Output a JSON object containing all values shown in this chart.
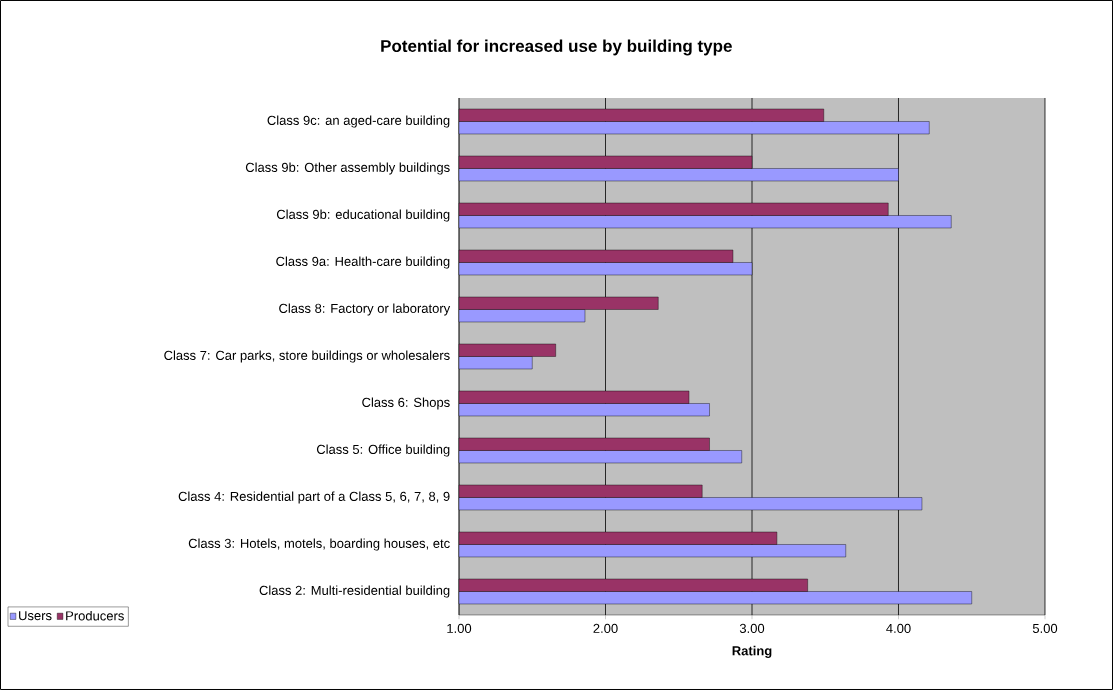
{
  "chart_data": {
    "type": "bar",
    "orientation": "horizontal",
    "title": "Potential for increased use by building type",
    "xlabel": "Rating",
    "categories": [
      "Class 9c: an aged-care building",
      "Class 9b: Other assembly buildings",
      "Class 9b: educational building",
      "Class 9a: Health-care building",
      "Class 8: Factory or laboratory",
      "Class 7: Car parks, store buildings or wholesalers",
      "Class 6: Shops",
      "Class 5: Office building",
      "Class 4: Residential part of a Class 5, 6, 7, 8, 9",
      "Class 3: Hotels, motels, boarding houses, etc",
      "Class 2: Multi-residential building"
    ],
    "series": [
      {
        "name": "Users",
        "color": "#9999ff",
        "values": [
          4.21,
          4.0,
          4.36,
          3.0,
          1.86,
          1.5,
          2.71,
          2.93,
          4.16,
          3.64,
          4.5
        ]
      },
      {
        "name": "Producers",
        "color": "#993366",
        "values": [
          3.49,
          3.0,
          3.93,
          2.87,
          2.36,
          1.66,
          2.57,
          2.71,
          2.66,
          3.17,
          3.38
        ]
      }
    ],
    "xlim": [
      1,
      5
    ],
    "xticks": [
      {
        "value": 1,
        "label": "1.00"
      },
      {
        "value": 2,
        "label": "2.00"
      },
      {
        "value": 3,
        "label": "3.00"
      },
      {
        "value": 4,
        "label": "4.00"
      },
      {
        "value": 5,
        "label": "5.00"
      }
    ],
    "grid": "x",
    "legend": "bottom left"
  }
}
